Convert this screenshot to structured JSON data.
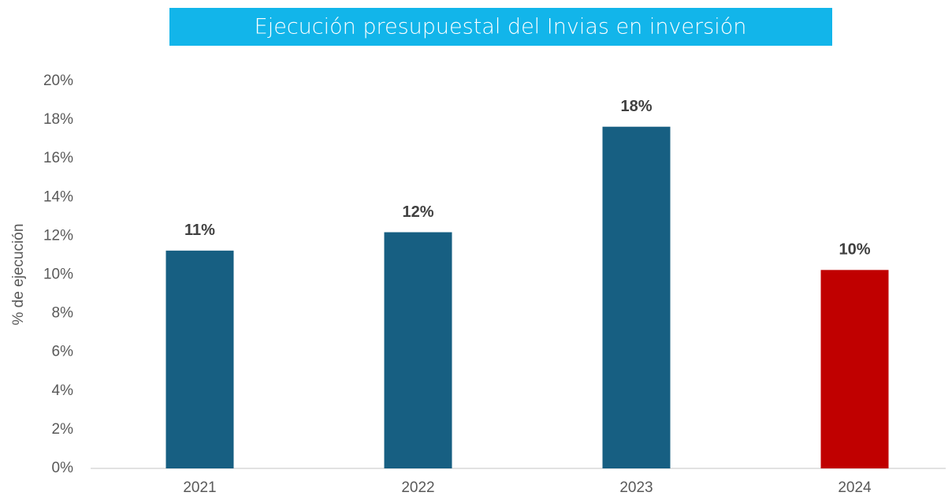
{
  "chart_data": {
    "type": "bar",
    "title": "Ejecución presupuestal del Invias en inversión",
    "y_label": "% de ejecución",
    "categories": [
      "2021",
      "2022",
      "2023",
      "2024"
    ],
    "values": [
      11.25,
      12.2,
      17.65,
      10.25
    ],
    "value_labels": [
      "11%",
      "12%",
      "18%",
      "10%"
    ],
    "colors": [
      "#175f82",
      "#175f82",
      "#175f82",
      "#c00000"
    ],
    "ylim": [
      0,
      20
    ],
    "yticks": [
      {
        "value": 0,
        "label": "0%"
      },
      {
        "value": 2,
        "label": "2%"
      },
      {
        "value": 4,
        "label": "4%"
      },
      {
        "value": 6,
        "label": "6%"
      },
      {
        "value": 8,
        "label": "8%"
      },
      {
        "value": 10,
        "label": "10%"
      },
      {
        "value": 12,
        "label": "12%"
      },
      {
        "value": 14,
        "label": "14%"
      },
      {
        "value": 16,
        "label": "16%"
      },
      {
        "value": 18,
        "label": "18%"
      },
      {
        "value": 20,
        "label": "20%"
      }
    ],
    "grid": false
  }
}
